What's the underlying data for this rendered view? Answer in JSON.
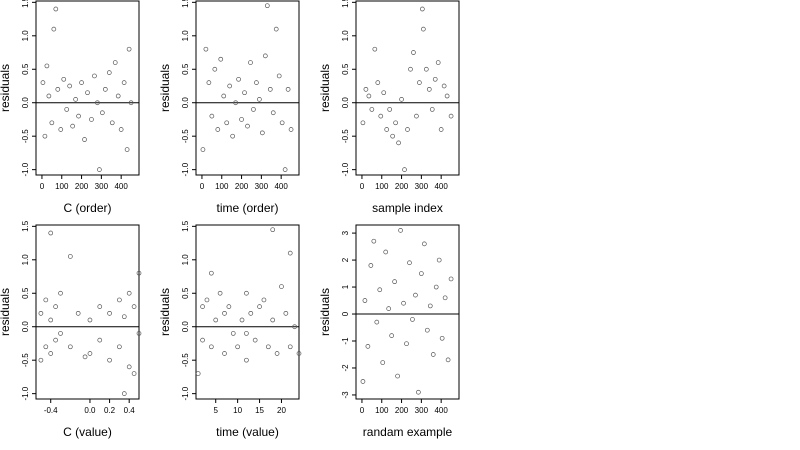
{
  "chart_data": [
    {
      "type": "scatter",
      "xlabel": "C (order)",
      "ylabel": "residuals",
      "color": "#555555",
      "hline": 0,
      "xlim": [
        -30,
        490
      ],
      "ylim": [
        -1.08,
        1.52
      ],
      "xticks": [
        0,
        100,
        200,
        300,
        400
      ],
      "yticks": [
        {
          "value": -1,
          "label": "-1.0"
        },
        {
          "value": -0.5,
          "label": "-0.5"
        },
        {
          "value": 0,
          "label": "0.0"
        },
        {
          "value": 0.5,
          "label": "0.5"
        },
        {
          "value": 1,
          "label": "1.0"
        },
        {
          "value": 1.5,
          "label": "1.5"
        }
      ],
      "x": [
        5,
        15,
        25,
        35,
        50,
        60,
        70,
        80,
        95,
        110,
        125,
        140,
        155,
        170,
        185,
        200,
        215,
        230,
        250,
        265,
        280,
        290,
        305,
        320,
        340,
        355,
        370,
        385,
        400,
        415,
        430,
        440,
        450
      ],
      "y": [
        0.3,
        -0.5,
        0.55,
        0.1,
        -0.3,
        1.1,
        1.4,
        0.2,
        -0.4,
        0.35,
        -0.1,
        0.25,
        -0.35,
        0.05,
        -0.2,
        0.3,
        -0.55,
        0.15,
        -0.25,
        0.4,
        0.0,
        -1.0,
        -0.15,
        0.2,
        0.45,
        -0.3,
        0.6,
        0.1,
        -0.4,
        0.3,
        -0.7,
        0.8,
        0.0
      ]
    },
    {
      "type": "scatter",
      "xlabel": "time (order)",
      "ylabel": "residuals",
      "color": "#555555",
      "hline": 0,
      "xlim": [
        -30,
        490
      ],
      "ylim": [
        -1.08,
        1.52
      ],
      "xticks": [
        0,
        100,
        200,
        300,
        400
      ],
      "yticks": [
        {
          "value": -1,
          "label": "-1.0"
        },
        {
          "value": -0.5,
          "label": "-0.5"
        },
        {
          "value": 0,
          "label": "0.0"
        },
        {
          "value": 0.5,
          "label": "0.5"
        },
        {
          "value": 1,
          "label": "1.0"
        },
        {
          "value": 1.5,
          "label": "1.5"
        }
      ],
      "x": [
        5,
        20,
        35,
        50,
        65,
        80,
        95,
        110,
        125,
        140,
        155,
        170,
        185,
        200,
        215,
        230,
        245,
        260,
        275,
        290,
        305,
        320,
        330,
        345,
        360,
        375,
        390,
        405,
        420,
        435,
        450
      ],
      "y": [
        -0.7,
        0.8,
        0.3,
        -0.2,
        0.5,
        -0.4,
        0.65,
        0.1,
        -0.3,
        0.25,
        -0.5,
        0.0,
        0.35,
        -0.25,
        0.15,
        -0.35,
        0.6,
        -0.1,
        0.3,
        0.05,
        -0.45,
        0.7,
        1.45,
        0.2,
        -0.15,
        1.1,
        0.4,
        -0.3,
        -1.0,
        0.2,
        -0.4
      ]
    },
    {
      "type": "scatter",
      "xlabel": "sample index",
      "ylabel": "residuals",
      "color": "#555555",
      "hline": 0,
      "xlim": [
        -30,
        490
      ],
      "ylim": [
        -1.08,
        1.52
      ],
      "xticks": [
        0,
        100,
        200,
        300,
        400
      ],
      "yticks": [
        {
          "value": -1,
          "label": "-1.0"
        },
        {
          "value": -0.5,
          "label": "-0.5"
        },
        {
          "value": 0,
          "label": "0.0"
        },
        {
          "value": 0.5,
          "label": "0.5"
        },
        {
          "value": 1,
          "label": "1.0"
        },
        {
          "value": 1.5,
          "label": "1.5"
        }
      ],
      "x": [
        5,
        20,
        35,
        50,
        65,
        80,
        95,
        110,
        125,
        140,
        155,
        170,
        185,
        200,
        215,
        230,
        245,
        260,
        275,
        290,
        305,
        310,
        325,
        340,
        355,
        370,
        385,
        400,
        415,
        430,
        450
      ],
      "y": [
        -0.3,
        0.2,
        0.1,
        -0.1,
        0.8,
        0.3,
        -0.2,
        0.15,
        -0.4,
        -0.1,
        -0.5,
        -0.3,
        -0.6,
        0.05,
        -1.0,
        -0.4,
        0.5,
        0.75,
        -0.2,
        0.3,
        1.4,
        1.1,
        0.5,
        0.2,
        -0.1,
        0.35,
        0.6,
        -0.4,
        0.25,
        0.1,
        -0.2
      ]
    },
    {
      "type": "scatter",
      "xlabel": "C (value)",
      "ylabel": "residuals",
      "color": "#555555",
      "hline": 0,
      "xlim": [
        -0.55,
        0.5
      ],
      "ylim": [
        -1.08,
        1.52
      ],
      "xticks": [
        -0.4,
        {
          "value": 0,
          "label": "0.0"
        },
        0.2,
        0.4
      ],
      "yticks": [
        {
          "value": -1,
          "label": "-1.0"
        },
        {
          "value": -0.5,
          "label": "-0.5"
        },
        {
          "value": 0,
          "label": "0.0"
        },
        {
          "value": 0.5,
          "label": "0.5"
        },
        {
          "value": 1,
          "label": "1.0"
        },
        {
          "value": 1.5,
          "label": "1.5"
        }
      ],
      "x": [
        -0.5,
        -0.5,
        -0.45,
        -0.45,
        -0.4,
        -0.4,
        -0.4,
        -0.35,
        -0.35,
        -0.3,
        -0.3,
        -0.2,
        -0.2,
        -0.12,
        -0.05,
        0.0,
        0.0,
        0.1,
        0.1,
        0.2,
        0.2,
        0.3,
        0.3,
        0.35,
        0.35,
        0.4,
        0.4,
        0.45,
        0.45,
        0.5,
        0.5
      ],
      "y": [
        0.2,
        -0.5,
        0.4,
        -0.3,
        1.4,
        0.1,
        -0.4,
        0.3,
        -0.2,
        0.5,
        -0.1,
        1.05,
        -0.3,
        0.2,
        -0.45,
        0.1,
        -0.4,
        0.3,
        -0.2,
        0.2,
        -0.5,
        0.4,
        -0.3,
        0.15,
        -1.0,
        0.5,
        -0.6,
        0.3,
        -0.7,
        0.8,
        -0.1
      ]
    },
    {
      "type": "scatter",
      "xlabel": "time (value)",
      "ylabel": "residuals",
      "color": "#555555",
      "hline": 0,
      "xlim": [
        0.5,
        24
      ],
      "ylim": [
        -1.08,
        1.52
      ],
      "xticks": [
        5,
        10,
        15,
        20
      ],
      "yticks": [
        {
          "value": -1,
          "label": "-1.0"
        },
        {
          "value": -0.5,
          "label": "-0.5"
        },
        {
          "value": 0,
          "label": "0.0"
        },
        {
          "value": 0.5,
          "label": "0.5"
        },
        {
          "value": 1,
          "label": "1.0"
        },
        {
          "value": 1.5,
          "label": "1.5"
        }
      ],
      "x": [
        1,
        2,
        2,
        3,
        4,
        4,
        5,
        6,
        7,
        7,
        8,
        9,
        10,
        11,
        12,
        12,
        12,
        13,
        14,
        15,
        16,
        17,
        18,
        18,
        19,
        20,
        21,
        22,
        22,
        23,
        24
      ],
      "y": [
        -0.7,
        0.3,
        -0.2,
        0.4,
        0.8,
        -0.3,
        0.1,
        0.5,
        -0.4,
        0.2,
        0.3,
        -0.1,
        -0.3,
        0.1,
        0.5,
        -0.5,
        -0.1,
        0.2,
        -0.2,
        0.3,
        0.4,
        -0.3,
        1.45,
        0.1,
        -0.4,
        0.6,
        0.2,
        1.1,
        -0.3,
        0.0,
        -0.4
      ]
    },
    {
      "type": "scatter",
      "xlabel": "randam example",
      "ylabel": "residuals",
      "color": "#555555",
      "hline": 0,
      "xlim": [
        -30,
        490
      ],
      "ylim": [
        -3.15,
        3.3
      ],
      "xticks": [
        0,
        100,
        200,
        300,
        400
      ],
      "yticks": [
        -3,
        -2,
        -1,
        0,
        1,
        2,
        3
      ],
      "x": [
        5,
        15,
        30,
        45,
        60,
        75,
        90,
        105,
        120,
        135,
        150,
        165,
        180,
        195,
        210,
        225,
        240,
        255,
        270,
        285,
        300,
        315,
        330,
        345,
        360,
        375,
        390,
        405,
        420,
        435,
        450
      ],
      "y": [
        -2.5,
        0.5,
        -1.2,
        1.8,
        2.7,
        -0.3,
        0.9,
        -1.8,
        2.3,
        0.2,
        -0.8,
        1.2,
        -2.3,
        3.1,
        0.4,
        -1.1,
        1.9,
        -0.2,
        0.7,
        -2.9,
        1.5,
        2.6,
        -0.6,
        0.3,
        -1.5,
        1.0,
        2.0,
        -0.9,
        0.6,
        -1.7,
        1.3
      ]
    }
  ]
}
